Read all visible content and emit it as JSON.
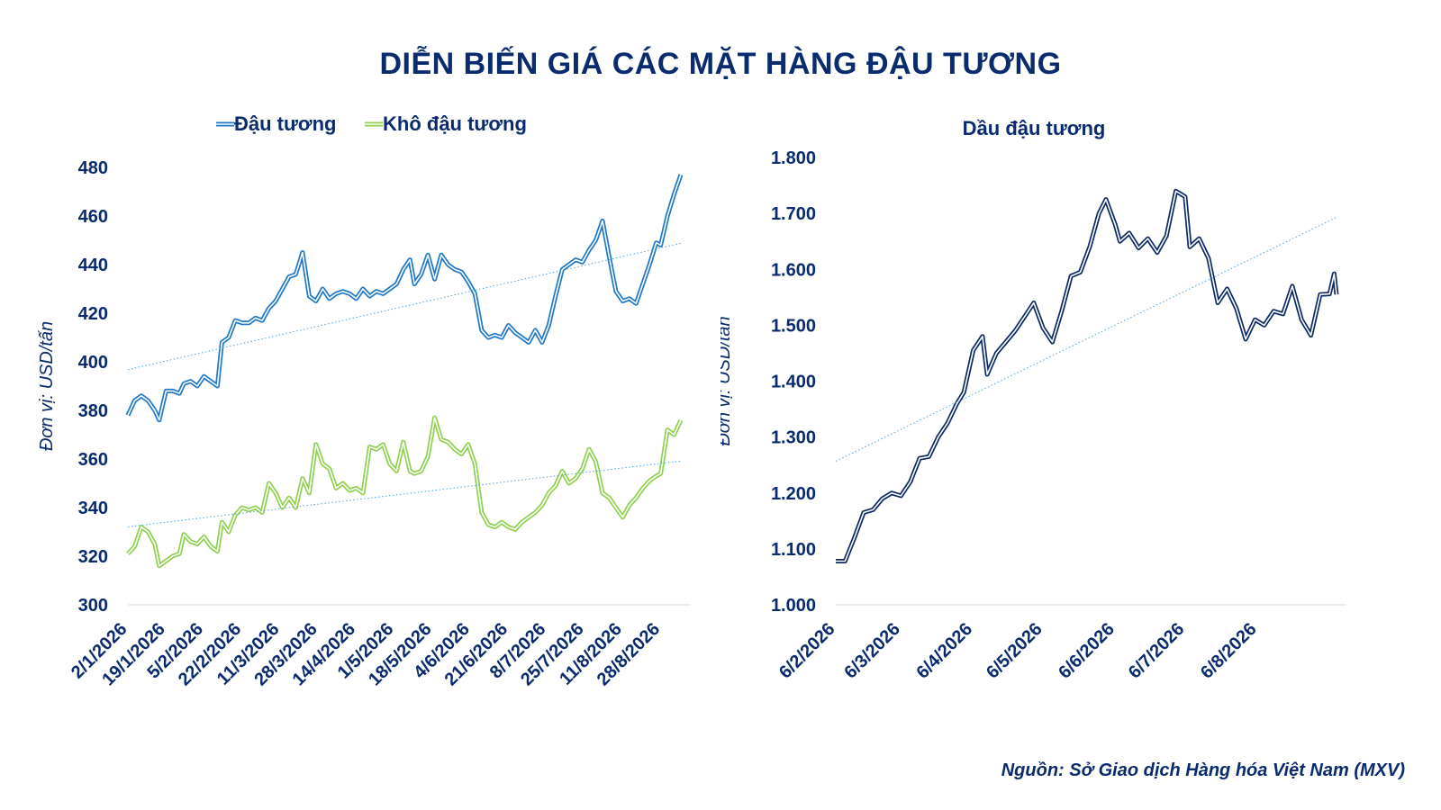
{
  "title": "DIỄN BIẾN GIÁ CÁC MẶT HÀNG ĐẬU TƯƠNG",
  "source": "Nguồn: Sở Giao dịch Hàng hóa Việt Nam (MXV)",
  "chart_data": [
    {
      "type": "line",
      "title": "",
      "ylabel": "Đơn vị: USD/tấn",
      "xlabel": "",
      "ylim": [
        300,
        480
      ],
      "yticks": [
        "300",
        "320",
        "340",
        "360",
        "380",
        "400",
        "420",
        "440",
        "460",
        "480"
      ],
      "xticks": [
        "2/1/2026",
        "19/1/2026",
        "5/2/2026",
        "22/2/2026",
        "11/3/2026",
        "28/3/2026",
        "14/4/2026",
        "1/5/2026",
        "18/5/2026",
        "4/6/2026",
        "21/6/2026",
        "8/7/2026",
        "25/7/2026",
        "11/8/2026",
        "28/8/2026"
      ],
      "legend": "top-left",
      "grid": false,
      "trendline": true,
      "series": [
        {
          "name": "Đậu tương",
          "color": "#1f78c8",
          "points": [
            [
              "2/1/2026",
              378
            ],
            [
              "5/1/2026",
              384
            ],
            [
              "8/1/2026",
              386
            ],
            [
              "11/1/2026",
              384
            ],
            [
              "14/1/2026",
              380
            ],
            [
              "16/1/2026",
              376
            ],
            [
              "19/1/2026",
              388
            ],
            [
              "22/1/2026",
              388
            ],
            [
              "25/1/2026",
              387
            ],
            [
              "27/1/2026",
              391
            ],
            [
              "30/1/2026",
              392
            ],
            [
              "2/2/2026",
              390
            ],
            [
              "5/2/2026",
              394
            ],
            [
              "8/2/2026",
              392
            ],
            [
              "11/2/2026",
              390
            ],
            [
              "13/2/2026",
              408
            ],
            [
              "16/2/2026",
              410
            ],
            [
              "19/2/2026",
              417
            ],
            [
              "22/2/2026",
              416
            ],
            [
              "25/2/2026",
              416
            ],
            [
              "28/2/2026",
              418
            ],
            [
              "3/3/2026",
              417
            ],
            [
              "6/3/2026",
              422
            ],
            [
              "9/3/2026",
              425
            ],
            [
              "12/3/2026",
              430
            ],
            [
              "15/3/2026",
              435
            ],
            [
              "18/3/2026",
              436
            ],
            [
              "21/3/2026",
              445
            ],
            [
              "24/3/2026",
              427
            ],
            [
              "27/3/2026",
              425
            ],
            [
              "30/3/2026",
              430
            ],
            [
              "2/4/2026",
              426
            ],
            [
              "5/4/2026",
              428
            ],
            [
              "8/4/2026",
              429
            ],
            [
              "11/4/2026",
              428
            ],
            [
              "14/4/2026",
              426
            ],
            [
              "17/4/2026",
              430
            ],
            [
              "20/4/2026",
              427
            ],
            [
              "23/4/2026",
              429
            ],
            [
              "26/4/2026",
              428
            ],
            [
              "29/4/2026",
              430
            ],
            [
              "2/5/2026",
              432
            ],
            [
              "5/5/2026",
              438
            ],
            [
              "8/5/2026",
              442
            ],
            [
              "10/5/2026",
              432
            ],
            [
              "13/5/2026",
              436
            ],
            [
              "16/5/2026",
              444
            ],
            [
              "19/5/2026",
              434
            ],
            [
              "22/5/2026",
              444
            ],
            [
              "25/5/2026",
              440
            ],
            [
              "28/5/2026",
              438
            ],
            [
              "31/5/2026",
              437
            ],
            [
              "3/6/2026",
              433
            ],
            [
              "6/6/2026",
              428
            ],
            [
              "9/6/2026",
              413
            ],
            [
              "12/6/2026",
              410
            ],
            [
              "15/6/2026",
              411
            ],
            [
              "18/6/2026",
              410
            ],
            [
              "21/6/2026",
              415
            ],
            [
              "24/6/2026",
              412
            ],
            [
              "27/6/2026",
              410
            ],
            [
              "30/6/2026",
              408
            ],
            [
              "3/7/2026",
              413
            ],
            [
              "6/7/2026",
              408
            ],
            [
              "9/7/2026",
              415
            ],
            [
              "12/7/2026",
              427
            ],
            [
              "15/7/2026",
              438
            ],
            [
              "18/7/2026",
              440
            ],
            [
              "21/7/2026",
              442
            ],
            [
              "24/7/2026",
              441
            ],
            [
              "27/7/2026",
              446
            ],
            [
              "30/7/2026",
              450
            ],
            [
              "2/8/2026",
              458
            ],
            [
              "5/8/2026",
              443
            ],
            [
              "8/8/2026",
              429
            ],
            [
              "11/8/2026",
              425
            ],
            [
              "14/8/2026",
              426
            ],
            [
              "17/8/2026",
              424
            ],
            [
              "20/8/2026",
              432
            ],
            [
              "23/8/2026",
              440
            ],
            [
              "26/8/2026",
              449
            ],
            [
              "28/8/2026",
              448
            ],
            [
              "31/8/2026",
              460
            ],
            [
              "3/9/2026",
              469
            ],
            [
              "6/9/2026",
              477
            ]
          ]
        },
        {
          "name": "Khô đậu tương",
          "color": "#8fd14f",
          "points": [
            [
              "2/1/2026",
              321
            ],
            [
              "5/1/2026",
              324
            ],
            [
              "8/1/2026",
              332
            ],
            [
              "11/1/2026",
              330
            ],
            [
              "14/1/2026",
              325
            ],
            [
              "16/1/2026",
              316
            ],
            [
              "19/1/2026",
              318
            ],
            [
              "22/1/2026",
              320
            ],
            [
              "25/1/2026",
              321
            ],
            [
              "27/1/2026",
              329
            ],
            [
              "30/1/2026",
              326
            ],
            [
              "2/2/2026",
              325
            ],
            [
              "5/2/2026",
              328
            ],
            [
              "8/2/2026",
              324
            ],
            [
              "11/2/2026",
              322
            ],
            [
              "13/2/2026",
              334
            ],
            [
              "16/2/2026",
              330
            ],
            [
              "19/2/2026",
              337
            ],
            [
              "22/2/2026",
              340
            ],
            [
              "25/2/2026",
              339
            ],
            [
              "28/2/2026",
              340
            ],
            [
              "3/3/2026",
              338
            ],
            [
              "6/3/2026",
              350
            ],
            [
              "9/3/2026",
              346
            ],
            [
              "12/3/2026",
              340
            ],
            [
              "15/3/2026",
              344
            ],
            [
              "18/3/2026",
              340
            ],
            [
              "21/3/2026",
              352
            ],
            [
              "24/3/2026",
              346
            ],
            [
              "27/3/2026",
              366
            ],
            [
              "30/3/2026",
              358
            ],
            [
              "2/4/2026",
              356
            ],
            [
              "5/4/2026",
              348
            ],
            [
              "8/4/2026",
              350
            ],
            [
              "11/4/2026",
              347
            ],
            [
              "14/4/2026",
              348
            ],
            [
              "17/4/2026",
              346
            ],
            [
              "20/4/2026",
              365
            ],
            [
              "23/4/2026",
              364
            ],
            [
              "26/4/2026",
              366
            ],
            [
              "29/4/2026",
              358
            ],
            [
              "2/5/2026",
              355
            ],
            [
              "5/5/2026",
              367
            ],
            [
              "8/5/2026",
              355
            ],
            [
              "10/5/2026",
              354
            ],
            [
              "13/5/2026",
              355
            ],
            [
              "16/5/2026",
              361
            ],
            [
              "19/5/2026",
              377
            ],
            [
              "22/5/2026",
              368
            ],
            [
              "25/5/2026",
              367
            ],
            [
              "28/5/2026",
              364
            ],
            [
              "31/5/2026",
              362
            ],
            [
              "3/6/2026",
              366
            ],
            [
              "6/6/2026",
              358
            ],
            [
              "9/6/2026",
              338
            ],
            [
              "12/6/2026",
              333
            ],
            [
              "15/6/2026",
              332
            ],
            [
              "18/6/2026",
              334
            ],
            [
              "21/6/2026",
              332
            ],
            [
              "24/6/2026",
              331
            ],
            [
              "27/6/2026",
              334
            ],
            [
              "30/6/2026",
              336
            ],
            [
              "3/7/2026",
              338
            ],
            [
              "6/7/2026",
              341
            ],
            [
              "9/7/2026",
              346
            ],
            [
              "12/7/2026",
              349
            ],
            [
              "15/7/2026",
              355
            ],
            [
              "18/7/2026",
              350
            ],
            [
              "21/7/2026",
              352
            ],
            [
              "24/7/2026",
              356
            ],
            [
              "27/7/2026",
              364
            ],
            [
              "30/7/2026",
              359
            ],
            [
              "2/8/2026",
              346
            ],
            [
              "5/8/2026",
              344
            ],
            [
              "8/8/2026",
              340
            ],
            [
              "11/8/2026",
              336
            ],
            [
              "14/8/2026",
              341
            ],
            [
              "17/8/2026",
              344
            ],
            [
              "20/8/2026",
              348
            ],
            [
              "23/8/2026",
              351
            ],
            [
              "26/8/2026",
              353
            ],
            [
              "28/8/2026",
              354
            ],
            [
              "31/8/2026",
              372
            ],
            [
              "3/9/2026",
              370
            ],
            [
              "6/9/2026",
              376
            ]
          ]
        }
      ]
    },
    {
      "type": "line",
      "title": "Dầu đậu tương",
      "ylabel": "Đơn vị: USD/tấn",
      "xlabel": "",
      "ylim": [
        1000,
        1800
      ],
      "yticks": [
        "1.000",
        "1.100",
        "1.200",
        "1.300",
        "1.400",
        "1.500",
        "1.600",
        "1.700",
        "1.800"
      ],
      "xticks": [
        "6/2/2026",
        "6/3/2026",
        "6/4/2026",
        "6/5/2026",
        "6/6/2026",
        "6/7/2026",
        "6/8/2026"
      ],
      "legend": "none",
      "grid": false,
      "trendline": true,
      "series": [
        {
          "name": "Dầu đậu tương",
          "color": "#0d2a66",
          "points": [
            [
              "6/2/2026",
              1078
            ],
            [
              "10/2/2026",
              1078
            ],
            [
              "14/2/2026",
              1120
            ],
            [
              "18/2/2026",
              1165
            ],
            [
              "22/2/2026",
              1170
            ],
            [
              "26/2/2026",
              1190
            ],
            [
              "2/3/2026",
              1200
            ],
            [
              "6/3/2026",
              1195
            ],
            [
              "10/3/2026",
              1220
            ],
            [
              "14/3/2026",
              1262
            ],
            [
              "18/3/2026",
              1265
            ],
            [
              "22/3/2026",
              1300
            ],
            [
              "26/3/2026",
              1325
            ],
            [
              "30/3/2026",
              1360
            ],
            [
              "2/4/2026",
              1380
            ],
            [
              "6/4/2026",
              1455
            ],
            [
              "10/4/2026",
              1480
            ],
            [
              "12/4/2026",
              1412
            ],
            [
              "16/4/2026",
              1450
            ],
            [
              "20/4/2026",
              1470
            ],
            [
              "24/4/2026",
              1490
            ],
            [
              "28/4/2026",
              1515
            ],
            [
              "2/5/2026",
              1540
            ],
            [
              "6/5/2026",
              1495
            ],
            [
              "10/5/2026",
              1470
            ],
            [
              "14/5/2026",
              1525
            ],
            [
              "18/5/2026",
              1588
            ],
            [
              "22/5/2026",
              1595
            ],
            [
              "26/5/2026",
              1640
            ],
            [
              "30/5/2026",
              1700
            ],
            [
              "2/6/2026",
              1725
            ],
            [
              "6/6/2026",
              1680
            ],
            [
              "8/6/2026",
              1650
            ],
            [
              "12/6/2026",
              1665
            ],
            [
              "16/6/2026",
              1638
            ],
            [
              "20/6/2026",
              1655
            ],
            [
              "24/6/2026",
              1630
            ],
            [
              "28/6/2026",
              1660
            ],
            [
              "2/7/2026",
              1740
            ],
            [
              "6/7/2026",
              1730
            ],
            [
              "8/7/2026",
              1640
            ],
            [
              "12/7/2026",
              1655
            ],
            [
              "16/7/2026",
              1620
            ],
            [
              "20/7/2026",
              1540
            ],
            [
              "24/7/2026",
              1565
            ],
            [
              "28/7/2026",
              1530
            ],
            [
              "1/8/2026",
              1475
            ],
            [
              "5/8/2026",
              1510
            ],
            [
              "9/8/2026",
              1500
            ],
            [
              "13/8/2026",
              1525
            ],
            [
              "17/8/2026",
              1520
            ],
            [
              "21/8/2026",
              1570
            ],
            [
              "25/8/2026",
              1510
            ],
            [
              "29/8/2026",
              1482
            ],
            [
              "2/9/2026",
              1555
            ],
            [
              "6/9/2026",
              1556
            ],
            [
              "8/9/2026",
              1592
            ],
            [
              "9/9/2026",
              1555
            ]
          ]
        }
      ]
    }
  ]
}
